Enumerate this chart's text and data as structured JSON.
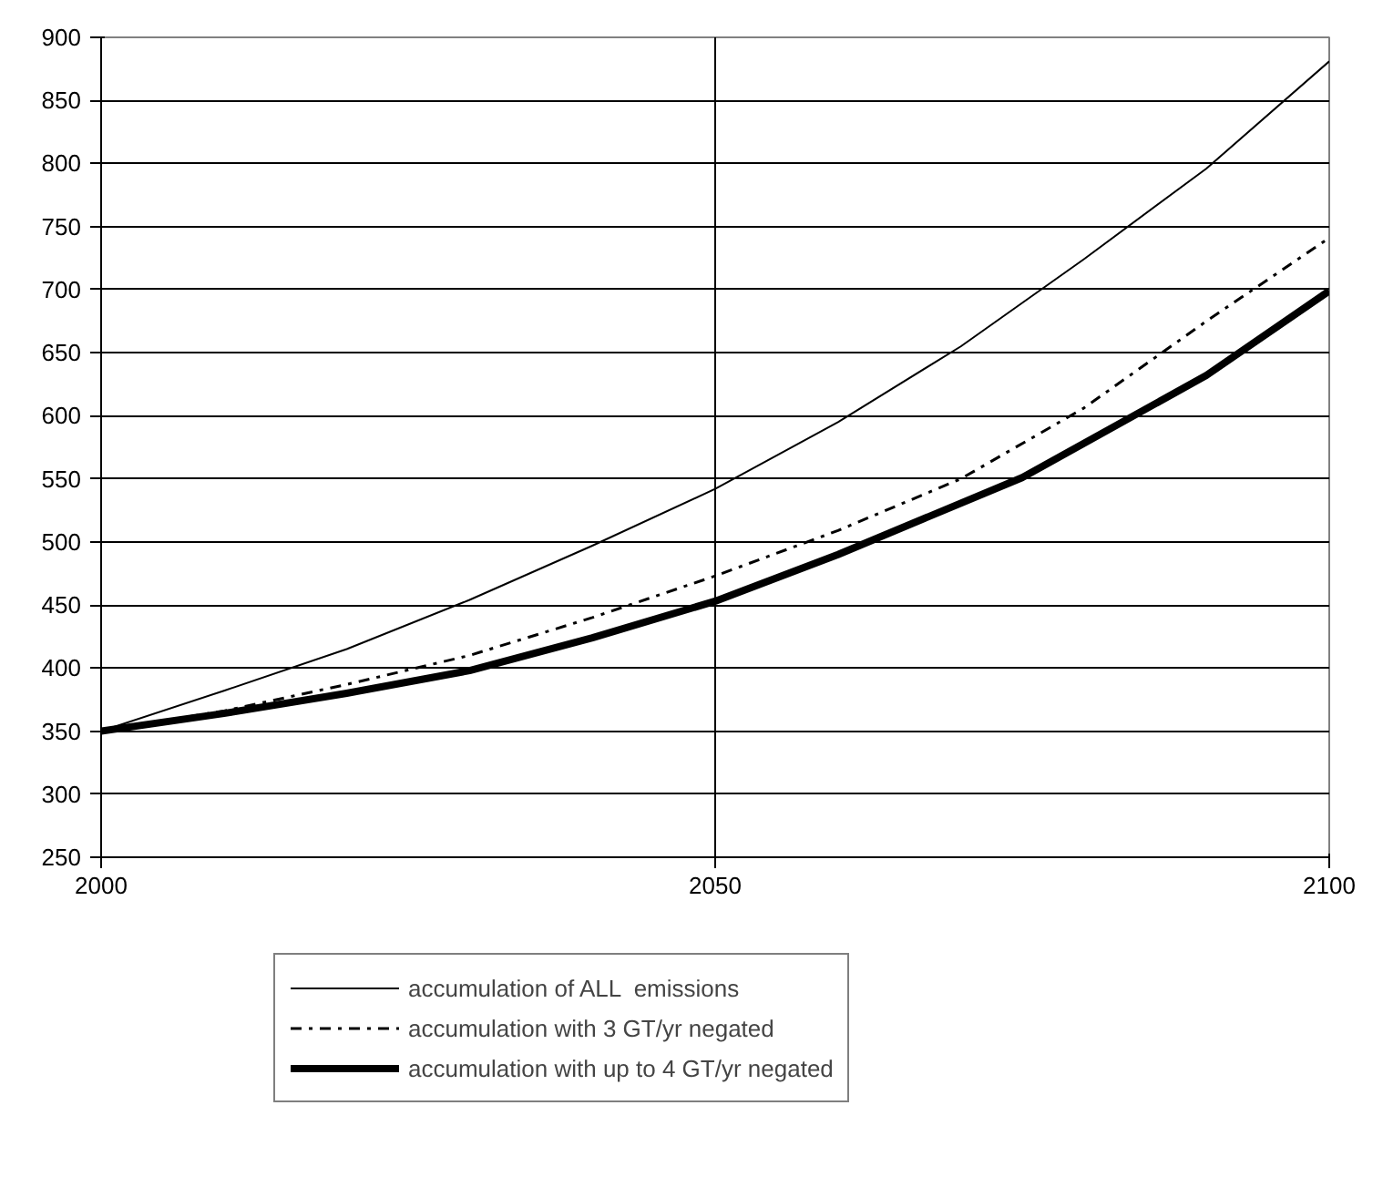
{
  "chart_data": {
    "type": "line",
    "x": [
      2000,
      2010,
      2020,
      2030,
      2040,
      2050,
      2060,
      2070,
      2080,
      2090,
      2100
    ],
    "series": [
      {
        "name": "accumulation of ALL  emissions",
        "color": "#000000",
        "line_style": "solid",
        "values": [
          350,
          382,
          415,
          454,
          497,
          542,
          595,
          655,
          724,
          796,
          881
        ]
      },
      {
        "name": "accumulation with 3 GT/yr negated",
        "color": "#000000",
        "line_style": "dashdot",
        "values": [
          350,
          366,
          387,
          410,
          440,
          473,
          509,
          550,
          606,
          675,
          741
        ]
      },
      {
        "name": "accumulation with up to 4 GT/yr negated",
        "color": "#000000",
        "line_style": "solid",
        "x": [
          2000,
          2010,
          2020,
          2030,
          2040,
          2050,
          2060,
          2075,
          2090,
          2100
        ],
        "values": [
          350,
          364,
          380,
          398,
          424,
          453,
          490,
          551,
          632,
          699
        ]
      }
    ],
    "xlim": [
      2000,
      2100
    ],
    "xticks": [
      2000,
      2050,
      2100
    ],
    "ylim": [
      250,
      900
    ],
    "yticks": [
      250,
      300,
      350,
      400,
      450,
      500,
      550,
      600,
      650,
      700,
      750,
      800,
      850,
      900
    ],
    "grid": true,
    "legend": "bottom",
    "marker": "none"
  }
}
